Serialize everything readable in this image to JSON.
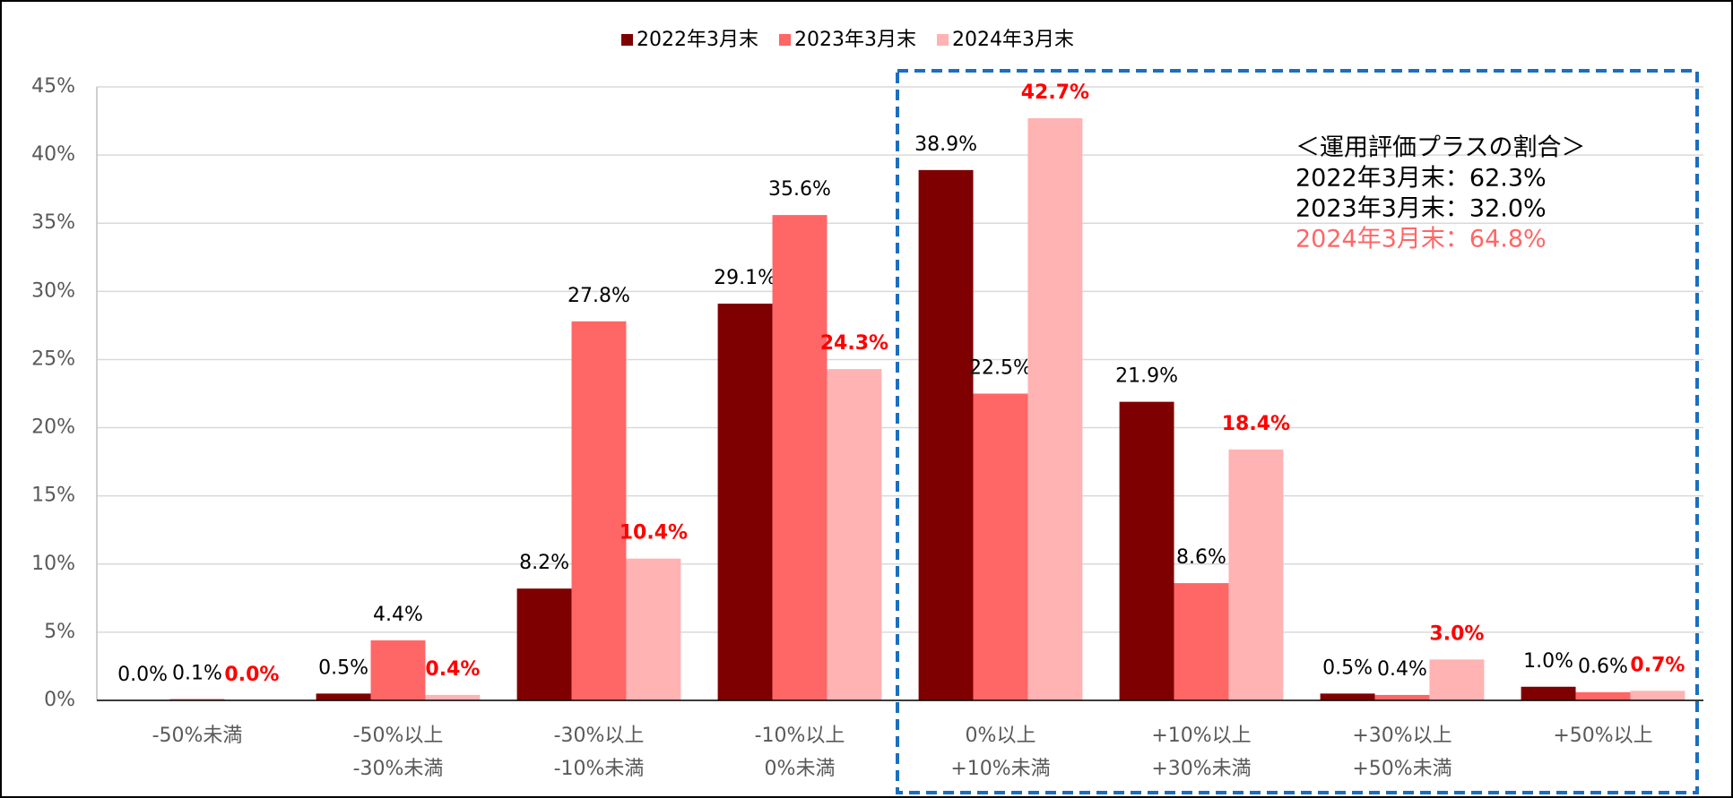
{
  "chart_data": {
    "type": "bar",
    "categories": [
      [
        "-50%未満"
      ],
      [
        "-50%以上",
        "-30%未満"
      ],
      [
        "-30%以上",
        "-10%未満"
      ],
      [
        "-10%以上",
        "0%未満"
      ],
      [
        "0%以上",
        "+10%未満"
      ],
      [
        "+10%以上",
        "+30%未満"
      ],
      [
        "+30%以上",
        "+50%未満"
      ],
      [
        "+50%以上"
      ]
    ],
    "series": [
      {
        "name": "2022年3月末",
        "color": "#7f0000",
        "label_color": "#000000",
        "label_bold": false,
        "values": [
          0.0,
          0.5,
          8.2,
          29.1,
          38.9,
          21.9,
          0.5,
          1.0
        ],
        "value_labels": [
          "0.0%",
          "0.5%",
          "8.2%",
          "29.1%",
          "38.9%",
          "21.9%",
          "0.5%",
          "1.0%"
        ]
      },
      {
        "name": "2023年3月末",
        "color": "#ff6666",
        "label_color": "#000000",
        "label_bold": false,
        "values": [
          0.1,
          4.4,
          27.8,
          35.6,
          22.5,
          8.6,
          0.4,
          0.6
        ],
        "value_labels": [
          "0.1%",
          "4.4%",
          "27.8%",
          "35.6%",
          "22.5%",
          "8.6%",
          "0.4%",
          "0.6%"
        ]
      },
      {
        "name": "2024年3月末",
        "color": "#ffb3b3",
        "label_color": "#ff0000",
        "label_bold": true,
        "values": [
          0.0,
          0.4,
          10.4,
          24.3,
          42.7,
          18.4,
          3.0,
          0.7
        ],
        "value_labels": [
          "0.0%",
          "0.4%",
          "10.4%",
          "24.3%",
          "42.7%",
          "18.4%",
          "3.0%",
          "0.7%"
        ]
      }
    ],
    "ylim": [
      0,
      45
    ],
    "yticks": [
      {
        "value": 0,
        "label": "0%"
      },
      {
        "value": 5,
        "label": "5%"
      },
      {
        "value": 10,
        "label": "10%"
      },
      {
        "value": 15,
        "label": "15%"
      },
      {
        "value": 20,
        "label": "20%"
      },
      {
        "value": 25,
        "label": "25%"
      },
      {
        "value": 30,
        "label": "30%"
      },
      {
        "value": 35,
        "label": "35%"
      },
      {
        "value": 40,
        "label": "40%"
      },
      {
        "value": 45,
        "label": "45%"
      }
    ],
    "grid": true,
    "legend": "top",
    "annotation": [
      {
        "text": "＜運用評価プラスの割合＞",
        "color": "#000000"
      },
      {
        "text": "2022年3月末：62.3%",
        "color": "#000000"
      },
      {
        "text": "2023年3月末：32.0%",
        "color": "#000000"
      },
      {
        "text": "2024年3月末：64.8%",
        "color": "#ff6666"
      }
    ]
  }
}
